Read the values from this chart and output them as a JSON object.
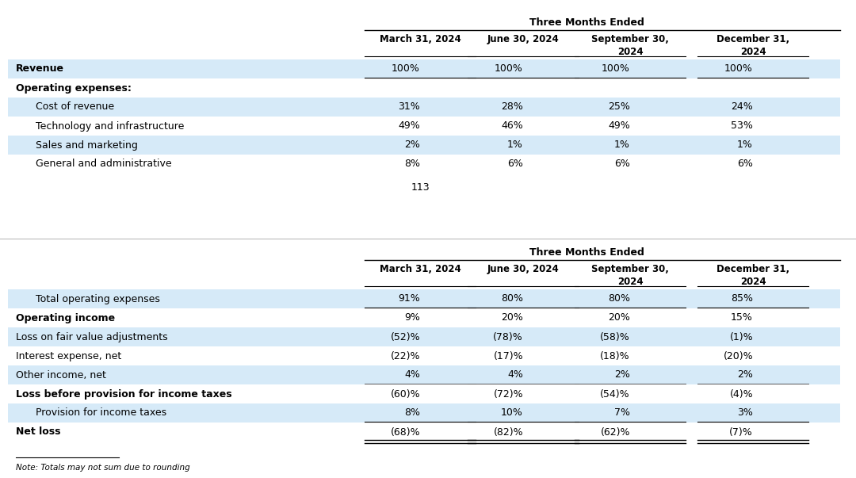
{
  "bg_color": "#ffffff",
  "alt_row_color": "#d6eaf8",
  "title": "Three Months Ended",
  "col_headers": [
    "March 31, 2024",
    "June 30, 2024",
    "September 30,\n2024",
    "December 31,\n2024"
  ],
  "table1": {
    "rows": [
      {
        "label": "Revenue",
        "bold": true,
        "indent": 0,
        "values": [
          "100%",
          "100%",
          "100%",
          "100%"
        ],
        "highlight": true,
        "underline_after": true
      },
      {
        "label": "Operating expenses:",
        "bold": true,
        "indent": 0,
        "values": [
          "",
          "",
          "",
          ""
        ],
        "highlight": false,
        "underline_after": false
      },
      {
        "label": "Cost of revenue",
        "bold": false,
        "indent": 1,
        "values": [
          "31%",
          "28%",
          "25%",
          "24%"
        ],
        "highlight": true,
        "underline_after": false
      },
      {
        "label": "Technology and infrastructure",
        "bold": false,
        "indent": 1,
        "values": [
          "49%",
          "46%",
          "49%",
          "53%"
        ],
        "highlight": false,
        "underline_after": false
      },
      {
        "label": "Sales and marketing",
        "bold": false,
        "indent": 1,
        "values": [
          "2%",
          "1%",
          "1%",
          "1%"
        ],
        "highlight": true,
        "underline_after": false
      },
      {
        "label": "General and administrative",
        "bold": false,
        "indent": 1,
        "values": [
          "8%",
          "6%",
          "6%",
          "6%"
        ],
        "highlight": false,
        "underline_after": false
      }
    ],
    "page_num": "113"
  },
  "table2": {
    "rows": [
      {
        "label": "Total operating expenses",
        "bold": false,
        "indent": 1,
        "values": [
          "91%",
          "80%",
          "80%",
          "85%"
        ],
        "highlight": true,
        "line_above": true,
        "line_below": true
      },
      {
        "label": "Operating income",
        "bold": true,
        "indent": 0,
        "values": [
          "9%",
          "20%",
          "20%",
          "15%"
        ],
        "highlight": false,
        "line_above": false,
        "line_below": false
      },
      {
        "label": "Loss on fair value adjustments",
        "bold": false,
        "indent": 0,
        "values": [
          "(52)%",
          "(78)%",
          "(58)%",
          "(1)%"
        ],
        "highlight": true,
        "line_above": false,
        "line_below": false
      },
      {
        "label": "Interest expense, net",
        "bold": false,
        "indent": 0,
        "values": [
          "(22)%",
          "(17)%",
          "(18)%",
          "(20)%"
        ],
        "highlight": false,
        "line_above": false,
        "line_below": false
      },
      {
        "label": "Other income, net",
        "bold": false,
        "indent": 0,
        "values": [
          "4%",
          "4%",
          "2%",
          "2%"
        ],
        "highlight": true,
        "line_above": false,
        "line_below": true
      },
      {
        "label": "Loss before provision for income taxes",
        "bold": true,
        "indent": 0,
        "values": [
          "(60)%",
          "(72)%",
          "(54)%",
          "(4)%"
        ],
        "highlight": false,
        "line_above": false,
        "line_below": false
      },
      {
        "label": "Provision for income taxes",
        "bold": false,
        "indent": 1,
        "values": [
          "8%",
          "10%",
          "7%",
          "3%"
        ],
        "highlight": true,
        "line_above": false,
        "line_below": true
      },
      {
        "label": "Net loss",
        "bold": true,
        "indent": 0,
        "values": [
          "(68)%",
          "(82)%",
          "(62)%",
          "(7)%"
        ],
        "highlight": false,
        "line_above": false,
        "line_below": false
      }
    ],
    "note": "Note: Totals may not sum due to rounding"
  }
}
